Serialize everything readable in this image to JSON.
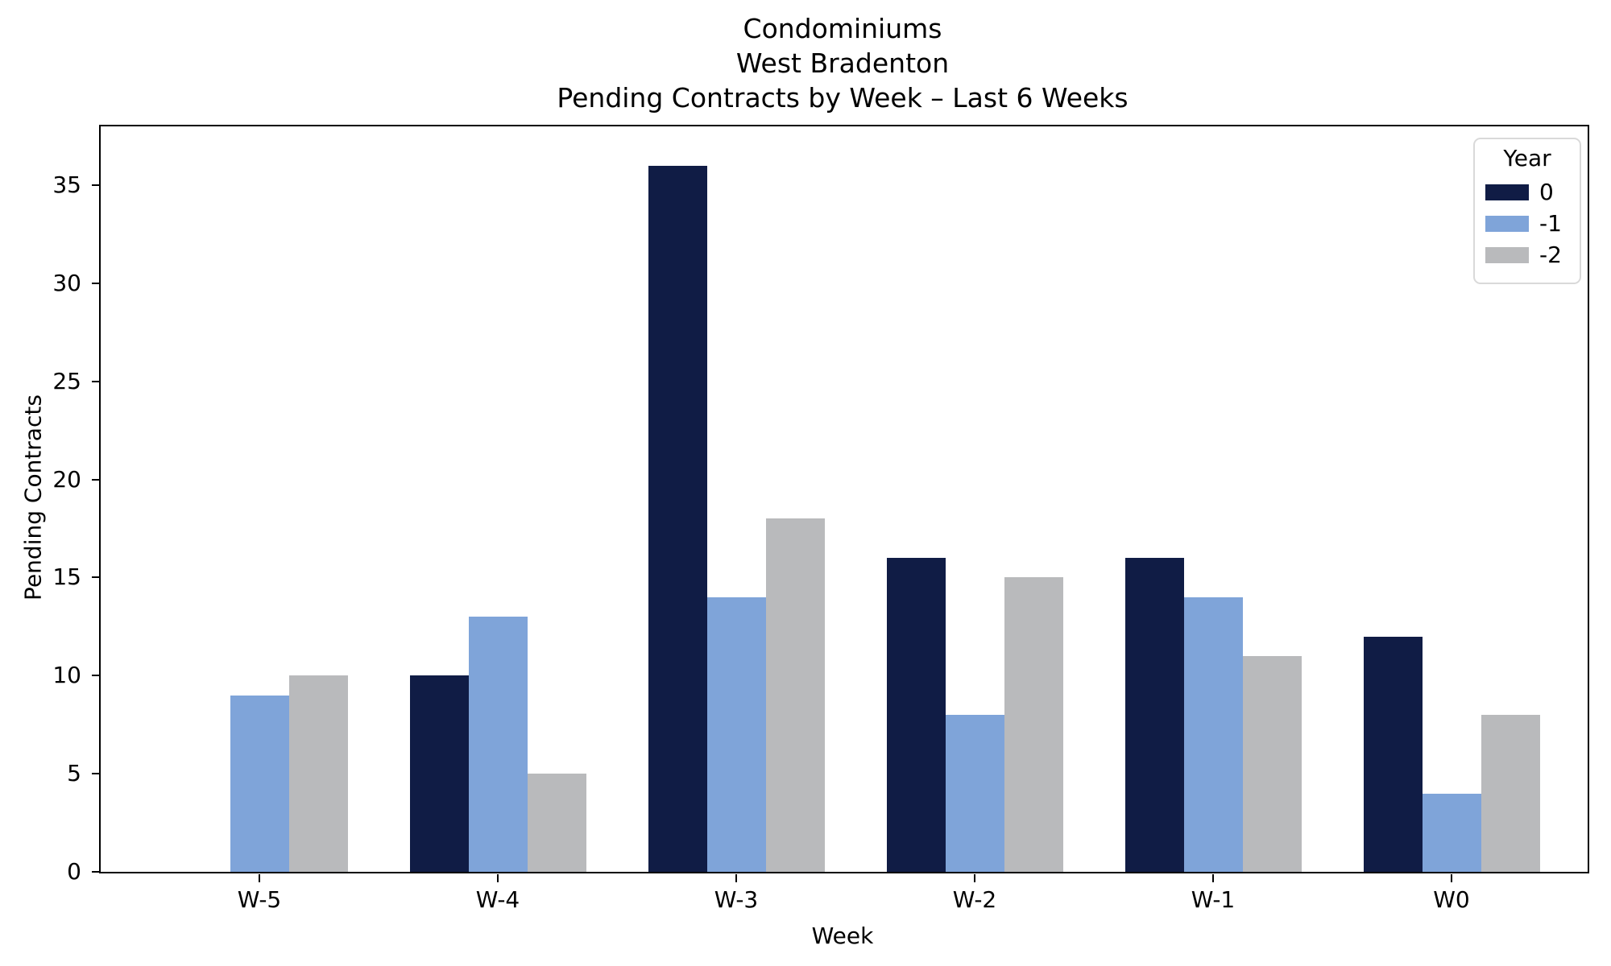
{
  "chart_data": {
    "type": "bar",
    "title_lines": [
      "Condominiums",
      "West Bradenton",
      "Pending Contracts by Week – Last 6 Weeks"
    ],
    "xlabel": "Week",
    "ylabel": "Pending Contracts",
    "categories": [
      "W-5",
      "W-4",
      "W-3",
      "W-2",
      "W-1",
      "W0"
    ],
    "series": [
      {
        "name": "0",
        "color": "#101c45",
        "values": [
          0,
          10,
          36,
          16,
          16,
          12
        ]
      },
      {
        "name": "-1",
        "color": "#7fa4d9",
        "values": [
          9,
          13,
          14,
          8,
          14,
          4
        ]
      },
      {
        "name": "-2",
        "color": "#b9babc",
        "values": [
          10,
          5,
          18,
          15,
          11,
          8
        ]
      }
    ],
    "legend": {
      "title": "Year",
      "position": "upper right"
    },
    "ylim": [
      0,
      38
    ],
    "yticks": [
      "0",
      "5",
      "10",
      "15",
      "20",
      "25",
      "30",
      "35"
    ],
    "grid": false,
    "background_color": "#ffffff",
    "axis_color": "#000000"
  }
}
